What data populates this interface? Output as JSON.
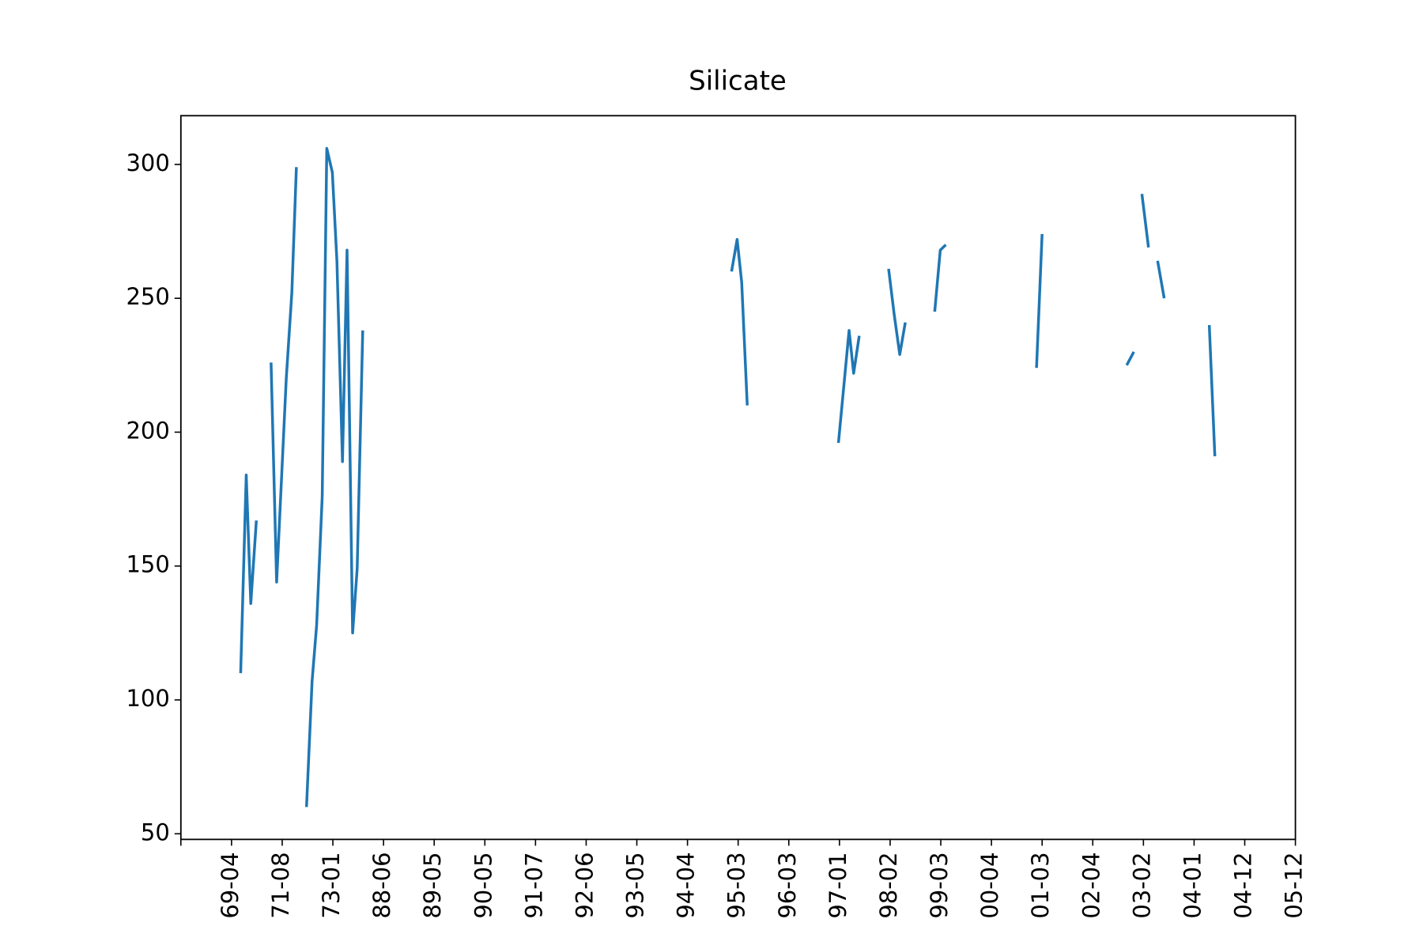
{
  "chart_data": {
    "type": "line",
    "title": "Silicate",
    "xlim": [
      0,
      22
    ],
    "xticks": [
      {
        "value": 0,
        "label": null
      },
      {
        "value": 1,
        "label": "69-04"
      },
      {
        "value": 2,
        "label": "71-08"
      },
      {
        "value": 3,
        "label": "73-01"
      },
      {
        "value": 4,
        "label": "88-06"
      },
      {
        "value": 5,
        "label": "89-05"
      },
      {
        "value": 6,
        "label": "90-05"
      },
      {
        "value": 7,
        "label": "91-07"
      },
      {
        "value": 8,
        "label": "92-06"
      },
      {
        "value": 9,
        "label": "93-05"
      },
      {
        "value": 10,
        "label": "94-04"
      },
      {
        "value": 11,
        "label": "95-03"
      },
      {
        "value": 12,
        "label": "96-03"
      },
      {
        "value": 13,
        "label": "97-01"
      },
      {
        "value": 14,
        "label": "98-02"
      },
      {
        "value": 15,
        "label": "99-03"
      },
      {
        "value": 16,
        "label": "00-04"
      },
      {
        "value": 17,
        "label": "01-03"
      },
      {
        "value": 18,
        "label": "02-04"
      },
      {
        "value": 19,
        "label": "03-02"
      },
      {
        "value": 20,
        "label": "04-01"
      },
      {
        "value": 21,
        "label": "04-12"
      },
      {
        "value": 22,
        "label": "05-12"
      }
    ],
    "ylim": [
      47.9,
      318.2
    ],
    "yticks": [
      50,
      100,
      150,
      200,
      250,
      300
    ],
    "x": [
      1.18,
      1.29,
      1.38,
      1.49,
      null,
      1.78,
      1.89,
      2.08,
      2.19,
      2.28,
      null,
      2.48,
      2.59,
      2.68,
      2.79,
      2.88,
      2.99,
      3.08,
      3.19,
      3.28,
      3.39,
      3.48,
      3.59,
      null,
      10.87,
      10.98,
      11.07,
      11.18,
      null,
      12.98,
      13.19,
      13.28,
      13.39,
      null,
      13.97,
      14.08,
      14.19,
      14.3,
      null,
      14.88,
      14.99,
      15.1,
      null,
      16.89,
      17.0,
      null,
      18.67,
      18.81,
      null,
      18.97,
      19.1,
      null,
      19.28,
      19.41,
      null,
      20.3,
      20.41
    ],
    "series": [
      {
        "color": "#1f77b4",
        "values": [
          110,
          184,
          136,
          167,
          null,
          226,
          144,
          220,
          252,
          299,
          null,
          60,
          107,
          128,
          176,
          306,
          297,
          264,
          189,
          268,
          125,
          149,
          238,
          null,
          260,
          272,
          256,
          210,
          null,
          196,
          238,
          222,
          236,
          null,
          261,
          244,
          229,
          241,
          null,
          245,
          268,
          270,
          null,
          224,
          274,
          null,
          225,
          230,
          null,
          289,
          269,
          null,
          264,
          250,
          null,
          240,
          191
        ]
      }
    ]
  }
}
